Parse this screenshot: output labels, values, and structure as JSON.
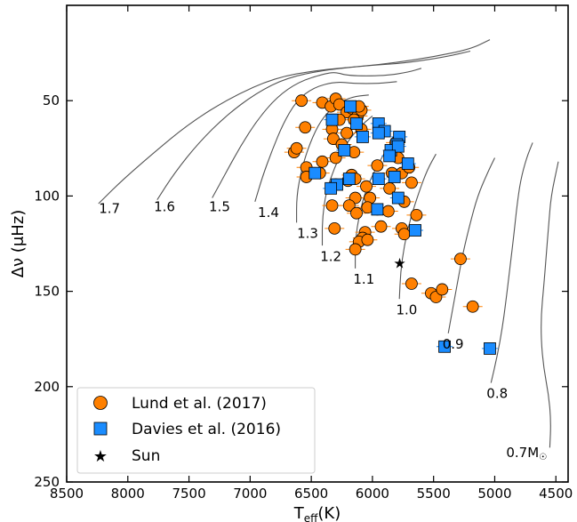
{
  "chart_data": {
    "type": "scatter",
    "xlabel": "T",
    "xlabel_sub": "eff",
    "xlabel_unit": "(K)",
    "ylabel": "Δν (μHz)",
    "xlim": [
      8500,
      4400
    ],
    "ylim": [
      250,
      0
    ],
    "y_inverted": true,
    "x_inverted": true,
    "x_ticks": [
      8500,
      8000,
      7500,
      7000,
      6500,
      6000,
      5500,
      5000,
      4500
    ],
    "x_tick_labels": [
      "8500",
      "8000",
      "7500",
      "7000",
      "6500",
      "6000",
      "5500",
      "5000",
      "4500"
    ],
    "y_ticks": [
      50,
      100,
      150,
      200,
      250
    ],
    "y_tick_labels": [
      "50",
      "100",
      "150",
      "200",
      "250"
    ],
    "legend_position": "bottom-left",
    "colors": {
      "lund": "#ff8000",
      "davies": "#1a8cff",
      "sun": "#000000",
      "track": "#555555",
      "errorbar": "#ff8000"
    },
    "series": [
      {
        "name": "Lund et al. (2017)",
        "marker": "circle",
        "points": [
          [
            6580,
            50
          ],
          [
            6410,
            51
          ],
          [
            6340,
            53
          ],
          [
            6300,
            49
          ],
          [
            6270,
            52
          ],
          [
            6210,
            56
          ],
          [
            6170,
            54
          ],
          [
            6120,
            58
          ],
          [
            6150,
            60
          ],
          [
            6090,
            55
          ],
          [
            6270,
            60
          ],
          [
            6550,
            64
          ],
          [
            6330,
            65
          ],
          [
            6210,
            67
          ],
          [
            6090,
            65
          ],
          [
            6320,
            70
          ],
          [
            6250,
            73
          ],
          [
            6150,
            77
          ],
          [
            6300,
            80
          ],
          [
            6410,
            82
          ],
          [
            6640,
            77
          ],
          [
            6620,
            75
          ],
          [
            6540,
            85
          ],
          [
            6540,
            90
          ],
          [
            6430,
            88
          ],
          [
            6300,
            94
          ],
          [
            6170,
            89
          ],
          [
            6140,
            91
          ],
          [
            6200,
            92
          ],
          [
            6050,
            95
          ],
          [
            6330,
            105
          ],
          [
            6140,
            101
          ],
          [
            6020,
            101
          ],
          [
            6190,
            105
          ],
          [
            6130,
            109
          ],
          [
            6040,
            106
          ],
          [
            5960,
            107
          ],
          [
            5870,
            108
          ],
          [
            5740,
            103
          ],
          [
            5930,
            116
          ],
          [
            6310,
            117
          ],
          [
            6060,
            119
          ],
          [
            6080,
            122
          ],
          [
            6110,
            124
          ],
          [
            6040,
            123
          ],
          [
            6140,
            128
          ],
          [
            5760,
            117
          ],
          [
            5740,
            120
          ],
          [
            5640,
            110
          ],
          [
            5680,
            146
          ],
          [
            5520,
            151
          ],
          [
            5480,
            153
          ],
          [
            5430,
            149
          ],
          [
            5280,
            133
          ],
          [
            5180,
            158
          ],
          [
            5810,
            72
          ],
          [
            5790,
            80
          ],
          [
            5840,
            88
          ],
          [
            5760,
            88
          ],
          [
            5700,
            85
          ],
          [
            5680,
            93
          ],
          [
            5860,
            96
          ],
          [
            5960,
            84
          ],
          [
            6110,
            53
          ]
        ]
      },
      {
        "name": "Davies et al. (2016)",
        "marker": "square",
        "points": [
          [
            6180,
            53
          ],
          [
            6330,
            60
          ],
          [
            6130,
            62
          ],
          [
            5950,
            62
          ],
          [
            5900,
            66
          ],
          [
            5950,
            67
          ],
          [
            5780,
            69
          ],
          [
            6080,
            69
          ],
          [
            5800,
            73
          ],
          [
            5850,
            76
          ],
          [
            5790,
            74
          ],
          [
            6230,
            76
          ],
          [
            5860,
            79
          ],
          [
            5710,
            83
          ],
          [
            5820,
            90
          ],
          [
            6470,
            88
          ],
          [
            6190,
            91
          ],
          [
            6290,
            94
          ],
          [
            6340,
            96
          ],
          [
            5950,
            91
          ],
          [
            5790,
            101
          ],
          [
            5960,
            107
          ],
          [
            5650,
            118
          ],
          [
            5410,
            179
          ],
          [
            5040,
            180
          ]
        ]
      },
      {
        "name": "Sun",
        "marker": "star",
        "points": [
          [
            5777,
            135
          ]
        ]
      }
    ],
    "mass_track_labels": [
      "1.7",
      "1.6",
      "1.5",
      "1.4",
      "1.3",
      "1.2",
      "1.1",
      "1.0",
      "0.9",
      "0.8",
      "0.7M",
      "☉"
    ],
    "mass_tracks": [
      {
        "label": "1.7",
        "label_at": [
          8150,
          109
        ],
        "points": [
          [
            8240,
            104
          ],
          [
            8050,
            92
          ],
          [
            7800,
            78
          ],
          [
            7500,
            62
          ],
          [
            7150,
            48
          ],
          [
            6800,
            38
          ],
          [
            6450,
            34
          ],
          [
            6100,
            32
          ],
          [
            5800,
            30
          ],
          [
            5500,
            27
          ],
          [
            5200,
            23
          ],
          [
            5040,
            18
          ]
        ]
      },
      {
        "label": "1.6",
        "label_at": [
          7700,
          108
        ],
        "points": [
          [
            7760,
            102
          ],
          [
            7620,
            88
          ],
          [
            7420,
            72
          ],
          [
            7200,
            58
          ],
          [
            6950,
            46
          ],
          [
            6700,
            38
          ],
          [
            6400,
            34
          ],
          [
            6100,
            32
          ],
          [
            5900,
            31
          ],
          [
            5700,
            30
          ],
          [
            5400,
            27
          ],
          [
            5200,
            24
          ]
        ]
      },
      {
        "label": "1.5",
        "label_at": [
          7250,
          108
        ],
        "points": [
          [
            7310,
            101
          ],
          [
            7200,
            88
          ],
          [
            7080,
            74
          ],
          [
            6940,
            60
          ],
          [
            6780,
            48
          ],
          [
            6600,
            40
          ],
          [
            6400,
            36
          ],
          [
            6300,
            35
          ],
          [
            6200,
            37
          ],
          [
            5900,
            37
          ],
          [
            5700,
            35
          ],
          [
            5600,
            33
          ]
        ]
      },
      {
        "label": "1.4",
        "label_at": [
          6850,
          111
        ],
        "points": [
          [
            6960,
            103
          ],
          [
            6900,
            90
          ],
          [
            6820,
            76
          ],
          [
            6730,
            62
          ],
          [
            6620,
            50
          ],
          [
            6480,
            43
          ],
          [
            6300,
            40
          ],
          [
            6150,
            41
          ],
          [
            5950,
            41
          ],
          [
            5800,
            40
          ]
        ]
      },
      {
        "label": "1.3",
        "label_at": [
          6530,
          122
        ],
        "points": [
          [
            6620,
            114
          ],
          [
            6620,
            100
          ],
          [
            6580,
            86
          ],
          [
            6510,
            72
          ],
          [
            6420,
            60
          ],
          [
            6300,
            52
          ],
          [
            6170,
            48
          ],
          [
            6030,
            47
          ]
        ]
      },
      {
        "label": "1.2",
        "label_at": [
          6340,
          134
        ],
        "points": [
          [
            6410,
            126
          ],
          [
            6410,
            112
          ],
          [
            6380,
            98
          ],
          [
            6310,
            85
          ],
          [
            6220,
            73
          ],
          [
            6110,
            64
          ],
          [
            6000,
            58
          ]
        ]
      },
      {
        "label": "1.1",
        "label_at": [
          6070,
          146
        ],
        "points": [
          [
            6140,
            138
          ],
          [
            6140,
            124
          ],
          [
            6110,
            110
          ],
          [
            6050,
            96
          ],
          [
            5960,
            84
          ],
          [
            5870,
            74
          ]
        ]
      },
      {
        "label": "1.0",
        "label_at": [
          5720,
          162
        ],
        "points": [
          [
            5780,
            154
          ],
          [
            5770,
            140
          ],
          [
            5740,
            126
          ],
          [
            5690,
            112
          ],
          [
            5620,
            98
          ],
          [
            5550,
            86
          ],
          [
            5480,
            78
          ]
        ]
      },
      {
        "label": "0.9",
        "label_at": [
          5340,
          180
        ],
        "points": [
          [
            5380,
            172
          ],
          [
            5340,
            158
          ],
          [
            5300,
            144
          ],
          [
            5260,
            130
          ],
          [
            5200,
            114
          ],
          [
            5140,
            100
          ],
          [
            5060,
            88
          ],
          [
            5000,
            80
          ]
        ]
      },
      {
        "label": "0.8",
        "label_at": [
          4980,
          206
        ],
        "points": [
          [
            5030,
            198
          ],
          [
            4980,
            184
          ],
          [
            4940,
            170
          ],
          [
            4910,
            156
          ],
          [
            4880,
            140
          ],
          [
            4850,
            124
          ],
          [
            4820,
            106
          ],
          [
            4790,
            92
          ],
          [
            4740,
            80
          ],
          [
            4690,
            72
          ]
        ]
      },
      {
        "label": "0.7M",
        "label_at": [
          4740,
          237
        ],
        "points": [
          [
            4550,
            232
          ],
          [
            4540,
            218
          ],
          [
            4560,
            204
          ],
          [
            4600,
            190
          ],
          [
            4620,
            176
          ],
          [
            4620,
            162
          ],
          [
            4600,
            148
          ],
          [
            4580,
            132
          ],
          [
            4560,
            116
          ],
          [
            4540,
            100
          ],
          [
            4480,
            82
          ]
        ]
      }
    ]
  }
}
